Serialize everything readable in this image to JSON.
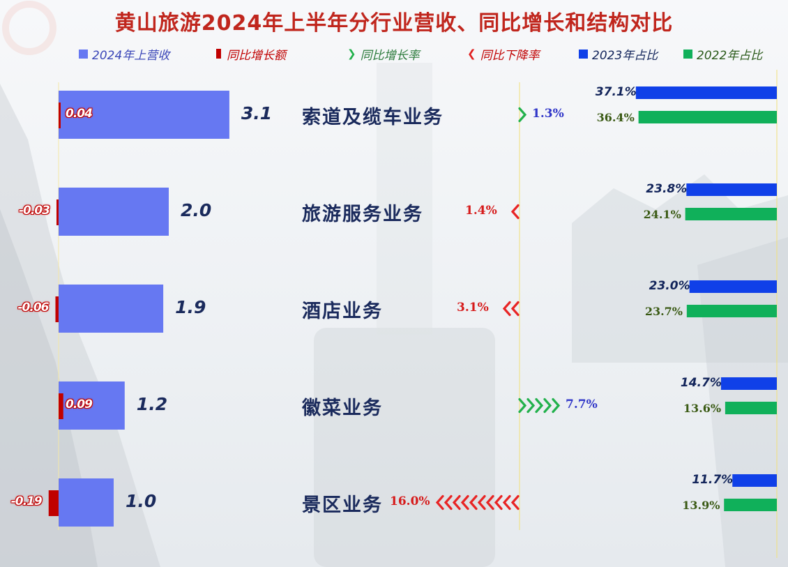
{
  "chart_data": {
    "type": "bar",
    "title": "黄山旅游2024年上半年分行业营收、同比增长和结构对比",
    "categories": [
      "索道及缆车业务",
      "旅游服务业务",
      "酒店业务",
      "徽菜业务",
      "景区业务"
    ],
    "legend": [
      {
        "label": "2024年上营收",
        "color": "#6678f2"
      },
      {
        "label": "同比增长额",
        "color": "#c00000"
      },
      {
        "label": "同比增长率",
        "color": "#22b14c"
      },
      {
        "label": "同比下降率",
        "color": "#e02020"
      },
      {
        "label": "2023年占比",
        "color": "#1040e8"
      },
      {
        "label": "2022年占比",
        "color": "#10b05a"
      }
    ],
    "series": [
      {
        "name": "2024年上营收",
        "values": [
          3.1,
          2.0,
          1.9,
          1.2,
          1.0
        ],
        "labels": [
          "3.1",
          "2.0",
          "1.9",
          "1.2",
          "1.0"
        ]
      },
      {
        "name": "同比增长额",
        "values": [
          0.04,
          -0.03,
          -0.06,
          0.09,
          -0.19
        ],
        "labels": [
          "0.04",
          "-0.03",
          "-0.06",
          "0.09",
          "-0.19"
        ]
      },
      {
        "name": "同比增长率",
        "values": [
          1.3,
          -1.4,
          -3.1,
          7.7,
          -16.0
        ],
        "labels": [
          "1.3%",
          "1.4%",
          "3.1%",
          "7.7%",
          "16.0%"
        ]
      },
      {
        "name": "2023年占比",
        "values": [
          37.1,
          23.8,
          23.0,
          14.7,
          11.7
        ],
        "labels": [
          "37.1%",
          "23.8%",
          "23.0%",
          "14.7%",
          "11.7%"
        ]
      },
      {
        "name": "2022年占比",
        "values": [
          36.4,
          24.1,
          23.7,
          13.6,
          13.9
        ],
        "labels": [
          "36.4%",
          "24.1%",
          "23.7%",
          "13.6%",
          "13.9%"
        ]
      }
    ]
  }
}
